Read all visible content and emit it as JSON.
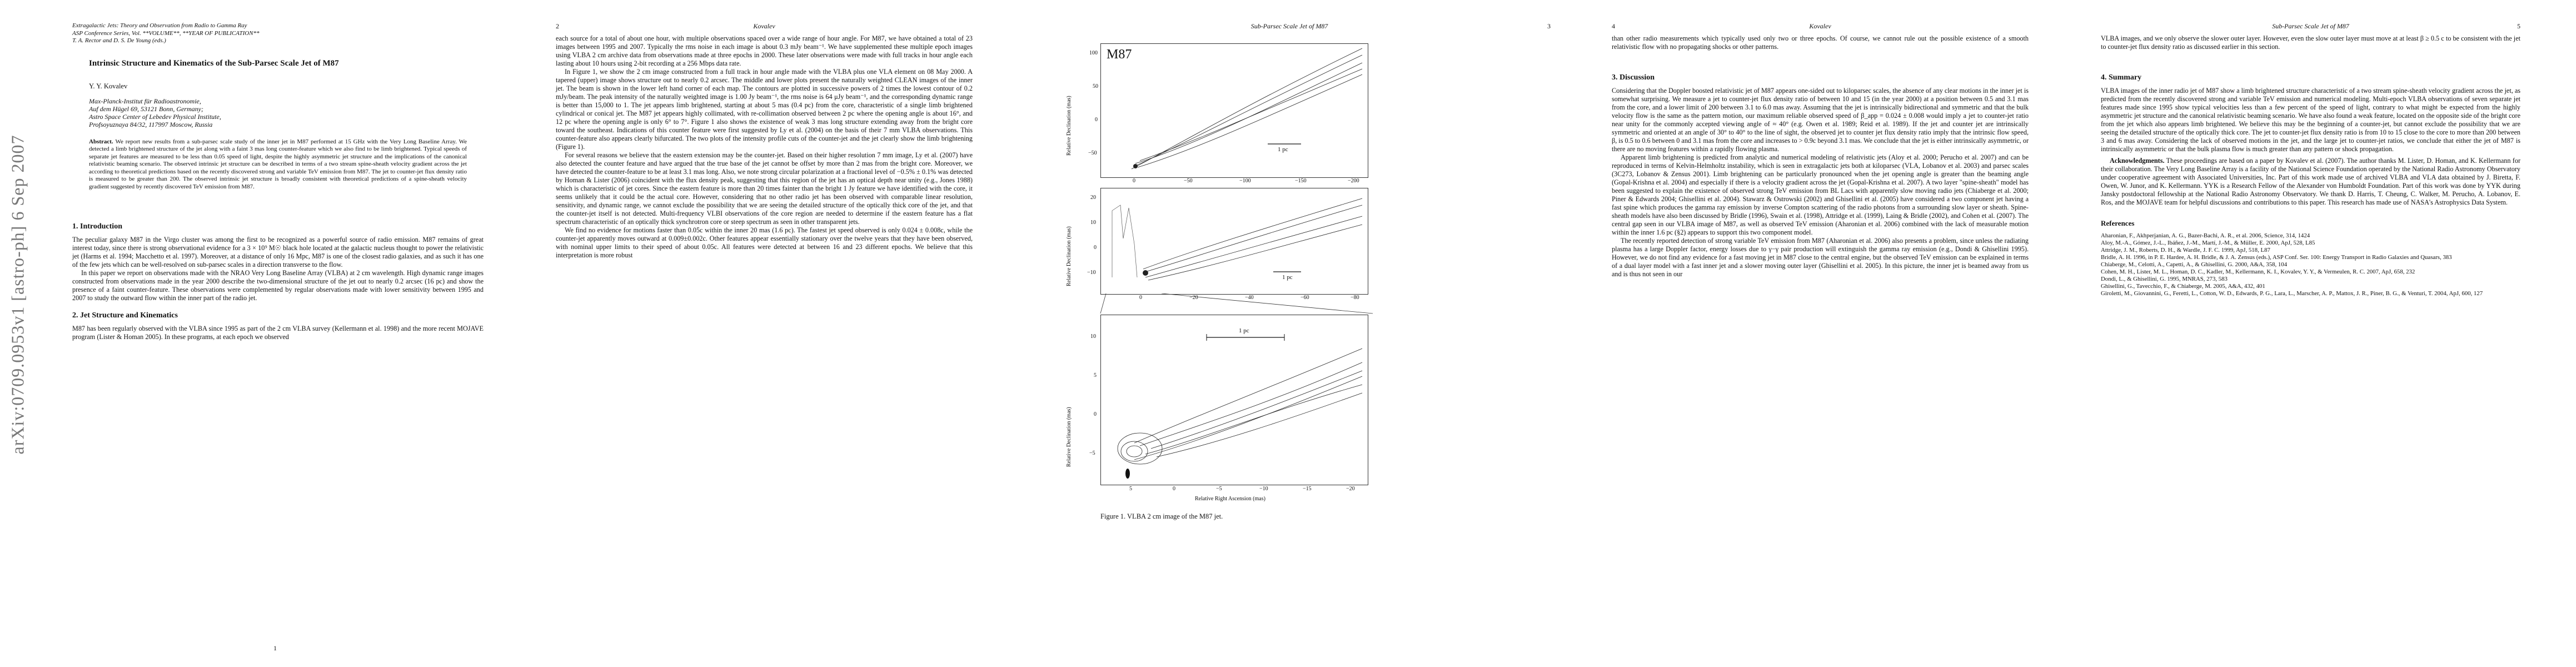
{
  "arxiv_id": "arXiv:0709.0953v1  [astro-ph]  6 Sep 2007",
  "page1": {
    "journal_line1": "Extragalactic Jets: Theory and Observation from Radio to Gamma Ray",
    "journal_line2": "ASP Conference Series, Vol. **VOLUME**, **YEAR OF PUBLICATION**",
    "journal_line3": "T. A. Rector and D. S. De Young (eds.)",
    "title": "Intrinsic Structure and Kinematics of the Sub-Parsec Scale Jet of M87",
    "author": "Y. Y. Kovalev",
    "affil1": "Max-Planck-Institut für Radioastronomie,",
    "affil2": "Auf dem Hügel 69, 53121 Bonn, Germany;",
    "affil3": "Astro Space Center of Lebedev Physical Institute,",
    "affil4": "Profsoyuznaya 84/32, 117997 Moscow, Russia",
    "abstract_label": "Abstract.",
    "abstract": "We report new results from a sub-parsec scale study of the inner jet in M87 performed at 15 GHz with the Very Long Baseline Array. We detected a limb brightened structure of the jet along with a faint 3 mas long counter-feature which we also find to be limb brightened. Typical speeds of separate jet features are measured to be less than 0.05 speed of light, despite the highly asymmetric jet structure and the implications of the canonical relativistic beaming scenario. The observed intrinsic jet structure can be described in terms of a two stream spine-sheath velocity gradient across the jet according to theoretical predictions based on the recently discovered strong and variable TeV emission from M87. The jet to counter-jet flux density ratio is measured to be greater than 200. The observed intrinsic jet structure is broadly consistent with theoretical predictions of a spine-sheath velocity gradient suggested by recently discovered TeV emission from M87.",
    "sec1": "1.   Introduction",
    "intro_p1": "The peculiar galaxy M87 in the Virgo cluster was among the first to be recognized as a powerful source of radio emission. M87 remains of great interest today, since there is strong observational evidence for a 3 × 10⁹ M☉ black hole located at the galactic nucleus thought to power the relativistic jet (Harms et al. 1994; Macchetto et al. 1997). Moreover, at a distance of only 16 Mpc, M87 is one of the closest radio galaxies, and as such it has one of the few jets which can be well-resolved on sub-parsec scales in a direction transverse to the flow.",
    "intro_p2": "In this paper we report on observations made with the NRAO Very Long Baseline Array (VLBA) at 2 cm wavelength. High dynamic range images constructed from observations made in the year 2000 describe the two-dimensional structure of the jet out to nearly 0.2 arcsec (16 pc) and show the presence of a faint counter-feature. These observations were complemented by regular observations made with lower sensitivity between 1995 and 2007 to study the outward flow within the inner part of the radio jet.",
    "sec2": "2.   Jet Structure and Kinematics",
    "sec2_p1": "M87 has been regularly observed with the VLBA since 1995 as part of the 2 cm VLBA survey (Kellermann et al. 1998) and the more recent MOJAVE program (Lister & Homan 2005). In these programs, at each epoch we observed",
    "page_num": "1"
  },
  "page2": {
    "header_num": "2",
    "header_author": "Kovalev",
    "p1": "each source for a total of about one hour, with multiple observations spaced over a wide range of hour angle. For M87, we have obtained a total of 23 images between 1995 and 2007. Typically the rms noise in each image is about 0.3 mJy beam⁻¹. We have supplemented these multiple epoch images using VLBA 2 cm archive data from observations made at three epochs in 2000. These later observations were made with full tracks in hour angle each lasting about 10 hours using 2-bit recording at a 256 Mbps data rate.",
    "p2": "In Figure 1, we show the 2 cm image constructed from a full track in hour angle made with the VLBA plus one VLA element on 08 May 2000. A tapered (upper) image shows structure out to nearly 0.2 arcsec. The middle and lower plots present the naturally weighted CLEAN images of the inner jet. The beam is shown in the lower left hand corner of each map. The contours are plotted in successive powers of 2 times the lowest contour of 0.2 mJy/beam. The peak intensity of the naturally weighted image is 1.00 Jy beam⁻¹, the rms noise is 64 μJy beam⁻¹, and the corresponding dynamic range is better than 15,000 to 1. The jet appears limb brightened, starting at about 5 mas (0.4 pc) from the core, characteristic of a single limb brightened cylindrical or conical jet. The M87 jet appears highly collimated, with re-collimation observed between 2 pc where the opening angle is about 16°, and 12 pc where the opening angle is only 6° to 7°. Figure 1 also shows the existence of weak 3 mas long structure extending away from the bright core toward the southeast. Indications of this counter feature were first suggested by Ly et al. (2004) on the basis of their 7 mm VLBA observations. This counter-feature also appears clearly bifurcated. The two plots of the intensity profile cuts of the counter-jet and the jet clearly show the limb brightening (Figure 1).",
    "p3": "For several reasons we believe that the eastern extension may be the counter-jet. Based on their higher resolution 7 mm image, Ly et al. (2007) have also detected the counter feature and have argued that the true base of the jet cannot be offset by more than 2 mas from the bright core. Moreover, we have detected the counter-feature to be at least 3.1 mas long. Also, we note strong circular polarization at a fractional level of −0.5% ± 0.1% was detected by Homan & Lister (2006) coincident with the flux density peak, suggesting that this region of the jet has an optical depth near unity (e.g., Jones 1988) which is characteristic of jet cores. Since the eastern feature is more than 20 times fainter than the bright 1 Jy feature we have identified with the core, it seems unlikely that it could be the actual core. However, considering that no other radio jet has been observed with comparable linear resolution, sensitivity, and dynamic range, we cannot exclude the possibility that we are seeing the detailed structure of the optically thick core of the jet, and that the counter-jet itself is not detected. Multi-frequency VLBI observations of the core region are needed to determine if the eastern feature has a flat spectrum characteristic of an optically thick synchrotron core or steep spectrum as seen in other transparent jets.",
    "p4": "We find no evidence for motions faster than 0.05c within the inner 20 mas (1.6 pc). The fastest jet speed observed is only 0.024 ± 0.008c, while the counter-jet apparently moves outward at 0.009±0.002c. Other features appear essentially stationary over the twelve years that they have been observed, with nominal upper limits to their speed of about 0.05c. All features were detected at between 16 and 23 different epochs. We believe that this interpretation is more robust"
  },
  "page3": {
    "header_title": "Sub-Parsec Scale Jet of M87",
    "header_num": "3",
    "panel_label": "M87",
    "scale_bar": "1 pc",
    "ylabel": "Relative Declination (mas)",
    "xlabel": "Relative Right Ascension (mas)",
    "top_yticks": [
      "100",
      "50",
      "0",
      "−50"
    ],
    "top_xticks": [
      "0",
      "−50",
      "−100",
      "−150",
      "−200"
    ],
    "mid_yticks": [
      "20",
      "10",
      "0",
      "−10"
    ],
    "mid_xticks": [
      "0",
      "−20",
      "−40",
      "−60",
      "−80"
    ],
    "bot_yticks": [
      "10",
      "5",
      "0",
      "−5"
    ],
    "bot_xticks": [
      "5",
      "0",
      "−5",
      "−10",
      "−15",
      "−20"
    ],
    "caption": "Figure 1.     VLBA 2 cm image of the M87 jet."
  },
  "page4": {
    "header_num": "4",
    "header_author": "Kovalev",
    "p1": "than other radio measurements which typically used only two or three epochs. Of course, we cannot rule out the possible existence of a smooth relativistic flow with no propagating shocks or other patterns.",
    "sec3": "3.   Discussion",
    "p2": "Considering that the Doppler boosted relativistic jet of M87 appears one-sided out to kiloparsec scales, the absence of any clear motions in the inner jet is somewhat surprising. We measure a jet to counter-jet flux density ratio of between 10 and 15 (in the year 2000) at a position between 0.5 and 3.1 mas from the core, and a lower limit of 200 between 3.1 to 6.0 mas away. Assuming that the jet is intrinsically bidirectional and symmetric and that the bulk velocity flow is the same as the pattern motion, our maximum reliable observed speed of β_app = 0.024 ± 0.008 would imply a jet to counter-jet ratio near unity for the commonly accepted viewing angle of ≈ 40° (e.g. Owen et al. 1989; Reid et al. 1989). If the jet and counter jet are intrinsically symmetric and oriented at an angle of 30° to 40° to the line of sight, the observed jet to counter jet flux density ratio imply that the intrinsic flow speed, β, is 0.5 to 0.6 between 0 and 3.1 mas from the core and increases to > 0.9c beyond 3.1 mas. We conclude that the jet is either intrinsically asymmetric, or there are no moving features within a rapidly flowing plasma.",
    "p3": "Apparent limb brightening is predicted from analytic and numerical modeling of relativistic jets (Aloy et al. 2000; Perucho et al. 2007) and can be reproduced in terms of Kelvin-Helmholtz instability, which is seen in extragalactic jets both at kiloparsec (VLA, Lobanov et al. 2003) and parsec scales (3C273, Lobanov & Zensus 2001). Limb brightening can be particularly pronounced when the jet opening angle is greater than the beaming angle (Gopal-Krishna et al. 2004) and especially if there is a velocity gradient across the jet (Gopal-Krishna et al. 2007). A two layer \"spine-sheath\" model has been suggested to explain the existence of observed strong TeV emission from BL Lacs with apparently slow moving radio jets (Chiaberge et al. 2000; Piner & Edwards 2004; Ghisellini et al. 2004). Stawarz & Ostrowski (2002) and Ghisellini et al. (2005) have considered a two component jet having a fast spine which produces the gamma ray emission by inverse Compton scattering of the radio photons from a surrounding slow layer or sheath. Spine-sheath models have also been discussed by Bridle (1996), Swain et al. (1998), Attridge et al. (1999), Laing & Bridle (2002), and Cohen et al. (2007). The central gap seen in our VLBA image of M87, as well as observed TeV emission (Aharonian et al. 2006) combined with the lack of measurable motion within the inner 1.6 pc (§2) appears to support this two component model.",
    "p4": "The recently reported detection of strong variable TeV emission from M87 (Aharonian et al. 2006) also presents a problem, since unless the radiating plasma has a large Doppler factor, energy losses due to γ−γ pair production will extinguish the gamma ray emission (e.g., Dondi & Ghisellini 1995). However, we do not find any evidence for a fast moving jet in M87 close to the central engine, but the observed TeV emission can be explained in terms of a dual layer model with a fast inner jet and a slower moving outer layer (Ghisellini et al. 2005). In this picture, the inner jet is beamed away from us and is thus not seen in our"
  },
  "page5": {
    "header_title": "Sub-Parsec Scale Jet of M87",
    "header_num": "5",
    "p1": "VLBA images, and we only observe the slower outer layer. However, even the slow outer layer must move at at least β ≥ 0.5 c to be consistent with the jet to counter-jet flux density ratio as discussed earlier in this section.",
    "sec4": "4.   Summary",
    "p2": "VLBA images of the inner radio jet of M87 show a limb brightened structure characteristic of a two stream spine-sheath velocity gradient across the jet, as predicted from the recently discovered strong and variable TeV emission and numerical modeling. Multi-epoch VLBA observations of seven separate jet features made since 1995 show typical velocities less than a few percent of the speed of light, contrary to what might be expected from the highly asymmetric jet structure and the canonical relativistic beaming scenario. We have also found a weak feature, located on the opposite side of the bright core from the jet which also appears limb brightened. We believe this may be the beginning of a counter-jet, but cannot exclude the possibility that we are seeing the detailed structure of the optically thick core. The jet to counter-jet flux density ratio is from 10 to 15 close to the core to more than 200 between 3 and 6 mas away. Considering the lack of observed motions in the jet, and the large jet to counter-jet ratios, we conclude that either the jet of M87 is intrinsically asymmetric or that the bulk plasma flow is much greater than any pattern or shock propagation.",
    "ack_label": "Acknowledgments.",
    "ack": "These proceedings are based on a paper by Kovalev et al. (2007). The author thanks M. Lister, D. Homan, and K. Kellermann for their collaboration. The Very Long Baseline Array is a facility of the National Science Foundation operated by the National Radio Astronomy Observatory under cooperative agreement with Associated Universities, Inc. Part of this work made use of archived VLBA and VLA data obtained by J. Biretta, F. Owen, W. Junor, and K. Kellermann. YYK is a Research Fellow of the Alexander von Humboldt Foundation. Part of this work was done by YYK during Jansky postdoctoral fellowship at the National Radio Astronomy Observatory. We thank D. Harris, T. Cheung, C. Walker, M. Perucho, A. Lobanov, E. Ros, and the MOJAVE team for helpful discussions and contributions to this paper. This research has made use of NASA's Astrophysics Data System.",
    "ref_title": "References",
    "refs": [
      "Aharonian, F., Akhperjanian, A. G., Bazer-Bachi, A. R., et al. 2006, Science, 314, 1424",
      "Aloy, M.-A., Gómez, J.-L., Ibáñez, J.-M., Martí, J.-M., & Müller, E. 2000, ApJ, 528, L85",
      "Attridge, J. M., Roberts, D. H., & Wardle, J. F. C. 1999, ApJ, 518, L87",
      "Bridle, A. H. 1996, in P. E. Hardee, A. H. Bridle, & J. A. Zensus (eds.), ASP Conf. Ser. 100: Energy Transport in Radio Galaxies and Quasars, 383",
      "Chiaberge, M., Celotti, A., Capetti, A., & Ghisellini, G. 2000, A&A, 358, 104",
      "Cohen, M. H., Lister, M. L., Homan, D. C., Kadler, M., Kellermann, K. I., Kovalev, Y. Y., & Vermeulen, R. C. 2007, ApJ, 658, 232",
      "Dondi, L., & Ghisellini, G. 1995, MNRAS, 273, 583",
      "Ghisellini, G., Tavecchio, F., & Chiaberge, M. 2005, A&A, 432, 401",
      "Giroletti, M., Giovannini, G., Feretti, L., Cotton, W. D., Edwards, P. G., Lara, L., Marscher, A. P., Mattox, J. R., Piner, B. G., & Venturi, T. 2004, ApJ, 600, 127"
    ]
  }
}
